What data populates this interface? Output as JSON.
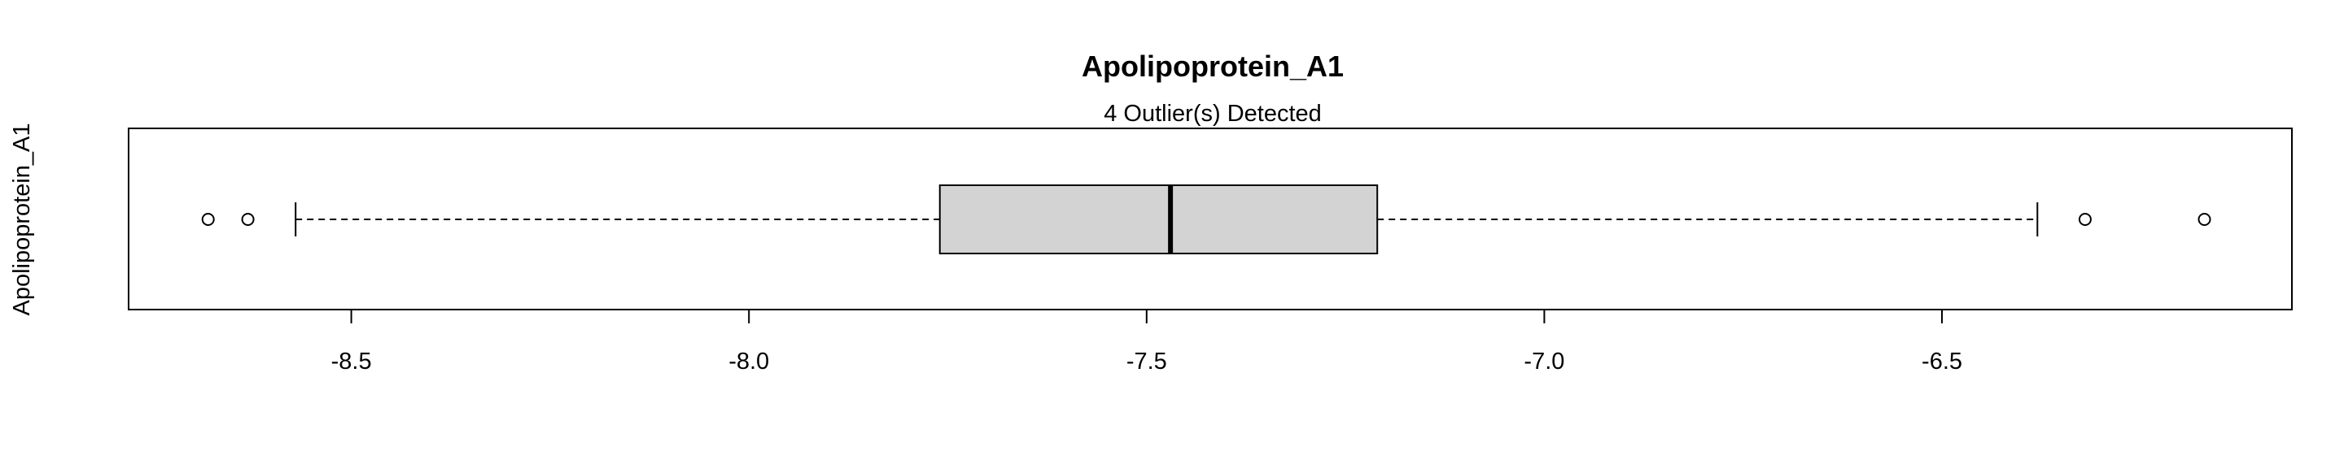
{
  "chart_data": {
    "type": "boxplot",
    "orientation": "horizontal",
    "title": "Apolipoprotein_A1",
    "subtitle": "4 Outlier(s) Detected",
    "ylabel": "Apolipoprotein_A1",
    "xlabel": "",
    "xlim": [
      -8.78,
      -6.06
    ],
    "xticks": [
      -8.5,
      -8.0,
      -7.5,
      -7.0,
      -6.5
    ],
    "xtick_labels": [
      "-8.5",
      "-8.0",
      "-7.5",
      "-7.0",
      "-6.5"
    ],
    "whisker_low": -8.57,
    "q1": -7.76,
    "median": -7.47,
    "q3": -7.21,
    "whisker_high": -6.38,
    "outliers": [
      -8.68,
      -8.63,
      -6.32,
      -6.17
    ],
    "box_color": "#d3d3d3",
    "grid": false
  }
}
